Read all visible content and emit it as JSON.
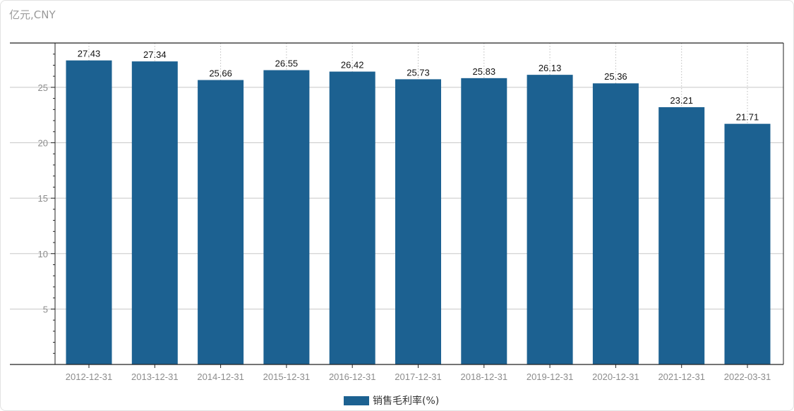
{
  "unit_label": "亿元,CNY",
  "colors": {
    "bar": "#1c6191",
    "grid": "#c8c8c8",
    "axis": "#222222"
  },
  "chart_data": {
    "type": "bar",
    "categories": [
      "2012-12-31",
      "2013-12-31",
      "2014-12-31",
      "2015-12-31",
      "2016-12-31",
      "2017-12-31",
      "2018-12-31",
      "2019-12-31",
      "2020-12-31",
      "2021-12-31",
      "2022-03-31"
    ],
    "series": [
      {
        "name": "销售毛利率(%)",
        "values": [
          27.43,
          27.34,
          25.66,
          26.55,
          26.42,
          25.73,
          25.83,
          26.13,
          25.36,
          23.21,
          21.71
        ]
      }
    ],
    "yticks": [
      5,
      10,
      15,
      20,
      25
    ],
    "ylim": [
      0,
      29
    ],
    "grid": true,
    "legend_position": "bottom-center"
  }
}
